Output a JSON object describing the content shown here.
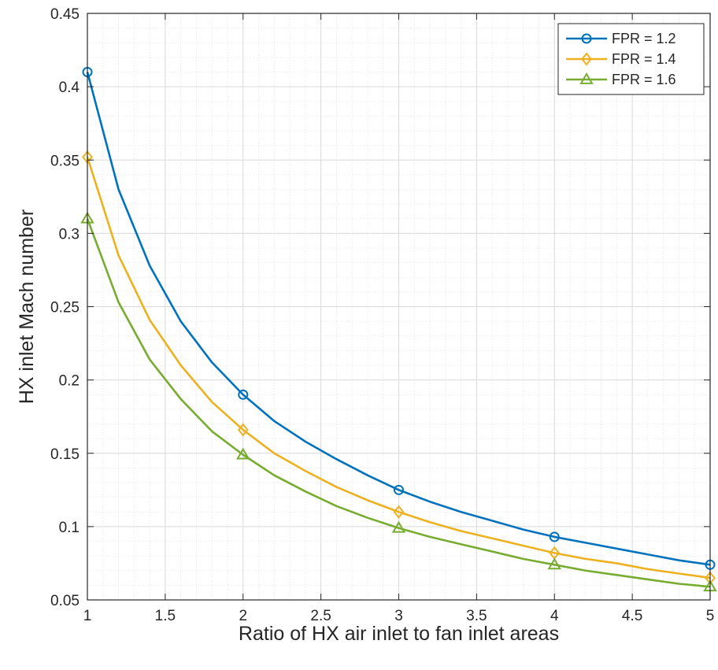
{
  "chart_data": {
    "type": "line",
    "title": "",
    "xlabel": "Ratio of HX air inlet to fan inlet areas",
    "ylabel": "HX inlet Mach number",
    "xlim": [
      1,
      5
    ],
    "ylim": [
      0.05,
      0.45
    ],
    "xticks": [
      "1",
      "1.5",
      "2",
      "2.5",
      "3",
      "3.5",
      "4",
      "4.5",
      "5"
    ],
    "yticks": [
      "0.05",
      "0.1",
      "0.15",
      "0.2",
      "0.25",
      "0.3",
      "0.35",
      "0.4",
      "0.45"
    ],
    "grid": "major and minor",
    "legend_position": "top-right",
    "series": [
      {
        "name": "FPR = 1.2",
        "color": "#0072bd",
        "marker": "circle",
        "x": [
          1,
          1.2,
          1.4,
          1.6,
          1.8,
          2,
          2.2,
          2.4,
          2.6,
          2.8,
          3,
          3.2,
          3.4,
          3.6,
          3.8,
          4,
          4.2,
          4.4,
          4.6,
          4.8,
          5
        ],
        "y": [
          0.41,
          0.33,
          0.278,
          0.24,
          0.212,
          0.19,
          0.172,
          0.158,
          0.146,
          0.135,
          0.125,
          0.117,
          0.11,
          0.104,
          0.098,
          0.093,
          0.089,
          0.085,
          0.081,
          0.077,
          0.074
        ],
        "marker_x": [
          1,
          2,
          3,
          4,
          5
        ],
        "marker_y": [
          0.41,
          0.19,
          0.125,
          0.093,
          0.074
        ]
      },
      {
        "name": "FPR = 1.4",
        "color": "#edb120",
        "marker": "diamond",
        "x": [
          1,
          1.2,
          1.4,
          1.6,
          1.8,
          2,
          2.2,
          2.4,
          2.6,
          2.8,
          3,
          3.2,
          3.4,
          3.6,
          3.8,
          4,
          4.2,
          4.4,
          4.6,
          4.8,
          5
        ],
        "y": [
          0.352,
          0.285,
          0.241,
          0.21,
          0.185,
          0.166,
          0.15,
          0.138,
          0.127,
          0.118,
          0.11,
          0.103,
          0.097,
          0.092,
          0.087,
          0.082,
          0.078,
          0.075,
          0.071,
          0.068,
          0.065
        ],
        "marker_x": [
          1,
          2,
          3,
          4,
          5
        ],
        "marker_y": [
          0.352,
          0.166,
          0.11,
          0.082,
          0.065
        ]
      },
      {
        "name": "FPR = 1.6",
        "color": "#77ac30",
        "marker": "triangle",
        "x": [
          1,
          1.2,
          1.4,
          1.6,
          1.8,
          2,
          2.2,
          2.4,
          2.6,
          2.8,
          3,
          3.2,
          3.4,
          3.6,
          3.8,
          4,
          4.2,
          4.4,
          4.6,
          4.8,
          5
        ],
        "y": [
          0.31,
          0.253,
          0.214,
          0.187,
          0.165,
          0.149,
          0.135,
          0.124,
          0.114,
          0.106,
          0.099,
          0.093,
          0.088,
          0.083,
          0.078,
          0.074,
          0.07,
          0.067,
          0.064,
          0.061,
          0.059
        ],
        "marker_x": [
          1,
          2,
          3,
          4,
          5
        ],
        "marker_y": [
          0.31,
          0.149,
          0.099,
          0.074,
          0.059
        ]
      }
    ]
  }
}
